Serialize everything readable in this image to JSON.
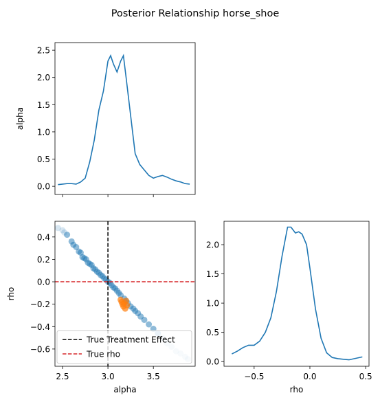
{
  "title": "Posterior Relationship horse_shoe",
  "chart_data": [
    {
      "type": "line",
      "ylabel": "alpha",
      "show_xtick_labels": false,
      "x": [
        2.45,
        2.5,
        2.55,
        2.6,
        2.65,
        2.7,
        2.75,
        2.8,
        2.85,
        2.9,
        2.95,
        3.0,
        3.03,
        3.06,
        3.1,
        3.14,
        3.17,
        3.2,
        3.25,
        3.3,
        3.35,
        3.4,
        3.45,
        3.5,
        3.55,
        3.6,
        3.65,
        3.7,
        3.75,
        3.8,
        3.85,
        3.9
      ],
      "series": [
        {
          "color": "#1f77b4",
          "values": [
            0.03,
            0.04,
            0.05,
            0.05,
            0.04,
            0.08,
            0.15,
            0.45,
            0.85,
            1.4,
            1.75,
            2.3,
            2.4,
            2.25,
            2.1,
            2.3,
            2.4,
            2.0,
            1.3,
            0.6,
            0.4,
            0.3,
            0.2,
            0.15,
            0.18,
            0.2,
            0.17,
            0.13,
            0.1,
            0.08,
            0.05,
            0.04
          ]
        }
      ],
      "xlim": [
        2.417,
        3.96
      ],
      "ylim": [
        -0.15,
        2.64
      ],
      "xticks": [
        2.5,
        3,
        3.5
      ],
      "yticks": [
        {
          "value": 0,
          "label": "0.0"
        },
        0.5,
        {
          "value": 1,
          "label": "1.0"
        },
        1.5,
        {
          "value": 2,
          "label": "2.0"
        },
        2.5
      ]
    },
    {
      "type": "scatter",
      "xlabel": "alpha",
      "ylabel": "rho",
      "legend": "lower left",
      "series": [
        {
          "color": "#1f77b4",
          "opacity": 0.5,
          "x": [
            2.55,
            2.6,
            2.62,
            2.65,
            2.68,
            2.7,
            2.72,
            2.74,
            2.76,
            2.78,
            2.8,
            2.82,
            2.84,
            2.86,
            2.88,
            2.9,
            2.92,
            2.94,
            2.96,
            2.98,
            3.0,
            3.02,
            3.04,
            3.06,
            3.08,
            3.1,
            3.12,
            3.14,
            3.18,
            3.2,
            3.22,
            3.25,
            3.28,
            3.3,
            3.33,
            3.36,
            3.4,
            3.45,
            3.5,
            3.55
          ],
          "values": [
            0.42,
            0.36,
            0.33,
            0.31,
            0.27,
            0.26,
            0.22,
            0.21,
            0.2,
            0.17,
            0.16,
            0.15,
            0.12,
            0.11,
            0.09,
            0.08,
            0.06,
            0.05,
            0.03,
            0.02,
            0.0,
            -0.01,
            -0.03,
            -0.05,
            -0.06,
            -0.08,
            -0.1,
            -0.12,
            -0.15,
            -0.17,
            -0.19,
            -0.22,
            -0.24,
            -0.26,
            -0.28,
            -0.31,
            -0.34,
            -0.38,
            -0.42,
            -0.46
          ]
        },
        {
          "color": "#1f77b4",
          "opacity": 0.18,
          "x": [
            2.45,
            2.5,
            2.52,
            3.6,
            3.65,
            3.7,
            3.75,
            3.8,
            3.85,
            3.88
          ],
          "values": [
            0.48,
            0.46,
            0.44,
            -0.5,
            -0.55,
            -0.58,
            -0.62,
            -0.64,
            -0.67,
            -0.69
          ]
        },
        {
          "color": "#ff7f0e",
          "opacity": 0.7,
          "x": [
            3.14,
            3.15,
            3.16,
            3.17,
            3.18,
            3.19,
            3.2,
            3.21
          ],
          "values": [
            -0.16,
            -0.18,
            -0.2,
            -0.22,
            -0.19,
            -0.24,
            -0.17,
            -0.21
          ]
        }
      ],
      "reference_lines": [
        {
          "name": "True Treatment Effect",
          "orientation": "vertical",
          "value": 3,
          "color": "#000000"
        },
        {
          "name": "True rho",
          "orientation": "horizontal",
          "value": 0,
          "color": "#d62728"
        }
      ],
      "xlim": [
        2.417,
        3.96
      ],
      "ylim": [
        -0.754,
        0.54
      ],
      "xticks": [
        2.5,
        {
          "value": 3,
          "label": "3.0"
        },
        3.5
      ],
      "yticks": [
        {
          "value": -0.6,
          "label": "−0.6"
        },
        {
          "value": -0.4,
          "label": "−0.4"
        },
        {
          "value": -0.2,
          "label": "−0.2"
        },
        {
          "value": 0,
          "label": "0.0"
        },
        0.2,
        0.4
      ]
    },
    {
      "type": "line",
      "xlabel": "rho",
      "x": [
        -0.7,
        -0.65,
        -0.6,
        -0.55,
        -0.5,
        -0.45,
        -0.4,
        -0.35,
        -0.3,
        -0.25,
        -0.2,
        -0.17,
        -0.13,
        -0.1,
        -0.07,
        -0.03,
        0.0,
        0.05,
        0.1,
        0.15,
        0.2,
        0.25,
        0.3,
        0.35,
        0.4,
        0.47
      ],
      "series": [
        {
          "color": "#1f77b4",
          "values": [
            0.13,
            0.18,
            0.24,
            0.28,
            0.28,
            0.35,
            0.5,
            0.75,
            1.2,
            1.8,
            2.3,
            2.3,
            2.2,
            2.22,
            2.18,
            2.0,
            1.6,
            0.9,
            0.4,
            0.15,
            0.07,
            0.05,
            0.04,
            0.03,
            0.05,
            0.08
          ]
        }
      ],
      "xlim": [
        -0.77,
        0.53
      ],
      "ylim": [
        -0.08,
        2.4
      ],
      "xticks": [
        {
          "value": -0.5,
          "label": "−0.5"
        },
        {
          "value": 0,
          "label": "0.0"
        },
        0.5
      ],
      "yticks": [
        {
          "value": 0,
          "label": "0.0"
        },
        0.5,
        {
          "value": 1,
          "label": "1.0"
        },
        1.5,
        {
          "value": 2,
          "label": "2.0"
        }
      ]
    }
  ]
}
